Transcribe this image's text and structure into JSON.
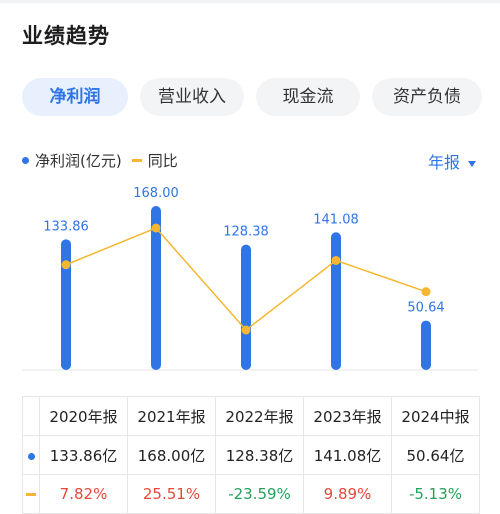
{
  "section": {
    "title": "业绩趋势"
  },
  "tabs": [
    {
      "label": "净利润",
      "active": true
    },
    {
      "label": "营业收入",
      "active": false
    },
    {
      "label": "现金流",
      "active": false
    },
    {
      "label": "资产负债",
      "active": false
    }
  ],
  "legend": {
    "series1": "净利润(亿元)",
    "series2": "同比"
  },
  "period_selector": {
    "label": "年报"
  },
  "colors": {
    "bar": "#2f75e6",
    "line": "#f5b731",
    "positive": "#e6483a",
    "negative": "#23a15b"
  },
  "chart_data": {
    "type": "bar",
    "categories": [
      "2020年报",
      "2021年报",
      "2022年报",
      "2023年报",
      "2024中报"
    ],
    "series": [
      {
        "name": "净利润(亿元)",
        "type": "bar",
        "values": [
          133.86,
          168.0,
          128.38,
          141.08,
          50.64
        ],
        "labels": [
          "133.86",
          "168.00",
          "128.38",
          "141.08",
          "50.64"
        ]
      },
      {
        "name": "同比",
        "type": "line",
        "values": [
          7.82,
          25.51,
          -23.59,
          9.89,
          -5.13
        ]
      }
    ]
  },
  "table": {
    "headers": [
      "2020年报",
      "2021年报",
      "2022年报",
      "2023年报",
      "2024中报"
    ],
    "profit_row": [
      "133.86亿",
      "168.00亿",
      "128.38亿",
      "141.08亿",
      "50.64亿"
    ],
    "yoy_row": [
      "7.82%",
      "25.51%",
      "-23.59%",
      "9.89%",
      "-5.13%"
    ]
  }
}
